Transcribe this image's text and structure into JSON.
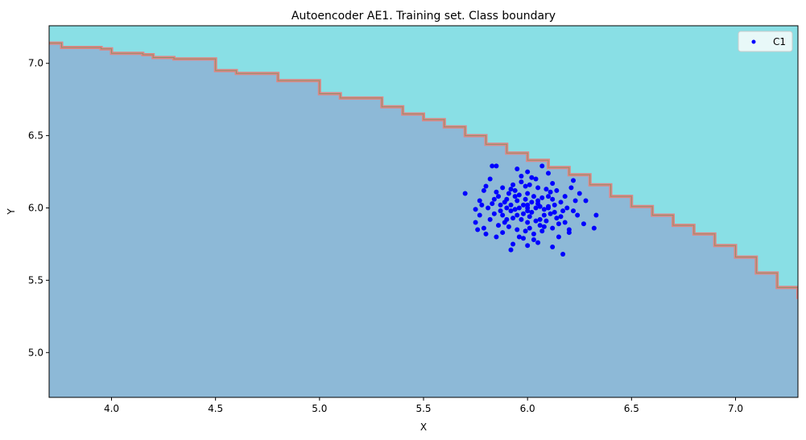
{
  "chart_data": {
    "type": "scatter",
    "title": "Autoencoder AE1. Training set. Class boundary",
    "xlabel": "X",
    "ylabel": "Y",
    "xlim": [
      3.7,
      7.3
    ],
    "ylim": [
      4.69,
      7.26
    ],
    "xticks": [
      "4.0",
      "4.5",
      "5.0",
      "5.5",
      "6.0",
      "6.5",
      "7.0"
    ],
    "yticks": [
      "5.0",
      "5.5",
      "6.0",
      "6.5",
      "7.0"
    ],
    "grid": false,
    "legend": {
      "position": "top-right",
      "entries": [
        "C1"
      ]
    },
    "colors": {
      "region_upper": "#89dfe5",
      "region_lower": "#8db9d7",
      "boundary": "#e08585",
      "boundary_inner": "#5a9a5a",
      "points": "#0000ff"
    },
    "boundary": [
      [
        3.7,
        7.14
      ],
      [
        3.76,
        7.11
      ],
      [
        3.95,
        7.1
      ],
      [
        4.0,
        7.07
      ],
      [
        4.15,
        7.06
      ],
      [
        4.2,
        7.04
      ],
      [
        4.3,
        7.03
      ],
      [
        4.5,
        6.95
      ],
      [
        4.6,
        6.93
      ],
      [
        4.8,
        6.88
      ],
      [
        5.0,
        6.79
      ],
      [
        5.1,
        6.76
      ],
      [
        5.3,
        6.7
      ],
      [
        5.4,
        6.65
      ],
      [
        5.5,
        6.61
      ],
      [
        5.6,
        6.56
      ],
      [
        5.7,
        6.5
      ],
      [
        5.8,
        6.44
      ],
      [
        5.9,
        6.38
      ],
      [
        6.0,
        6.33
      ],
      [
        6.1,
        6.28
      ],
      [
        6.2,
        6.23
      ],
      [
        6.3,
        6.16
      ],
      [
        6.4,
        6.08
      ],
      [
        6.5,
        6.01
      ],
      [
        6.6,
        5.95
      ],
      [
        6.7,
        5.88
      ],
      [
        6.8,
        5.82
      ],
      [
        6.9,
        5.74
      ],
      [
        7.0,
        5.66
      ],
      [
        7.1,
        5.55
      ],
      [
        7.2,
        5.45
      ],
      [
        7.3,
        5.37
      ]
    ],
    "series": [
      {
        "name": "C1",
        "points": [
          [
            5.7,
            6.1
          ],
          [
            6.33,
            5.95
          ],
          [
            6.32,
            5.86
          ],
          [
            5.92,
            5.71
          ],
          [
            6.17,
            5.68
          ],
          [
            5.83,
            6.29
          ],
          [
            5.85,
            6.29
          ],
          [
            6.07,
            6.29
          ],
          [
            6.22,
            6.19
          ],
          [
            5.75,
            5.99
          ],
          [
            5.75,
            5.9
          ],
          [
            5.76,
            5.85
          ],
          [
            5.77,
            6.05
          ],
          [
            5.8,
            5.82
          ],
          [
            5.79,
            6.12
          ],
          [
            5.82,
            6.2
          ],
          [
            6.25,
            6.1
          ],
          [
            6.28,
            6.05
          ],
          [
            6.27,
            5.89
          ],
          [
            6.24,
            5.95
          ],
          [
            5.95,
            6.27
          ],
          [
            6.0,
            6.25
          ],
          [
            6.1,
            6.24
          ],
          [
            5.93,
            5.75
          ],
          [
            6.0,
            5.74
          ],
          [
            6.12,
            5.73
          ],
          [
            6.05,
            5.76
          ],
          [
            6.15,
            5.8
          ],
          [
            6.2,
            5.83
          ],
          [
            5.85,
            5.8
          ],
          [
            6.0,
            6.0
          ],
          [
            5.98,
            6.02
          ],
          [
            6.02,
            5.97
          ],
          [
            5.95,
            6.05
          ],
          [
            6.05,
            6.03
          ],
          [
            5.92,
            5.98
          ],
          [
            6.08,
            5.95
          ],
          [
            5.97,
            5.92
          ],
          [
            6.03,
            6.08
          ],
          [
            5.9,
            6.06
          ],
          [
            6.1,
            6.01
          ],
          [
            5.88,
            5.95
          ],
          [
            6.12,
            6.06
          ],
          [
            5.94,
            6.12
          ],
          [
            6.06,
            5.88
          ],
          [
            5.99,
            6.15
          ],
          [
            6.01,
            5.86
          ],
          [
            5.87,
            6.02
          ],
          [
            6.13,
            5.97
          ],
          [
            5.96,
            6.0
          ],
          [
            6.04,
            6.0
          ],
          [
            5.93,
            5.93
          ],
          [
            6.07,
            6.07
          ],
          [
            5.91,
            6.1
          ],
          [
            6.09,
            5.91
          ],
          [
            5.86,
            6.08
          ],
          [
            6.14,
            5.93
          ],
          [
            5.95,
            5.85
          ],
          [
            6.05,
            6.14
          ],
          [
            5.89,
            5.9
          ],
          [
            6.11,
            6.11
          ],
          [
            6.0,
            6.1
          ],
          [
            6.0,
            5.9
          ],
          [
            5.9,
            6.0
          ],
          [
            6.1,
            6.0
          ],
          [
            5.84,
            5.96
          ],
          [
            6.16,
            6.04
          ],
          [
            5.97,
            6.18
          ],
          [
            6.03,
            5.82
          ],
          [
            5.83,
            6.03
          ],
          [
            6.17,
            5.98
          ],
          [
            5.96,
            5.8
          ],
          [
            6.04,
            6.2
          ],
          [
            5.82,
            5.92
          ],
          [
            6.18,
            6.08
          ],
          [
            5.88,
            6.14
          ],
          [
            6.12,
            5.86
          ],
          [
            5.94,
            6.08
          ],
          [
            6.06,
            5.92
          ],
          [
            5.98,
            5.96
          ],
          [
            6.02,
            6.04
          ],
          [
            5.92,
            6.02
          ],
          [
            6.08,
            5.99
          ],
          [
            5.99,
            6.06
          ],
          [
            6.01,
            5.94
          ],
          [
            5.85,
            6.11
          ],
          [
            6.15,
            5.89
          ],
          [
            5.91,
            5.87
          ],
          [
            6.09,
            6.13
          ],
          [
            5.97,
            6.22
          ],
          [
            6.03,
            5.78
          ],
          [
            5.81,
            6.0
          ],
          [
            6.19,
            6.0
          ],
          [
            5.86,
            5.88
          ],
          [
            6.14,
            6.12
          ],
          [
            5.93,
            6.16
          ],
          [
            6.07,
            5.84
          ],
          [
            5.95,
            5.95
          ],
          [
            6.05,
            6.05
          ],
          [
            5.89,
            6.04
          ],
          [
            6.11,
            5.96
          ],
          [
            6.0,
            6.02
          ],
          [
            6.0,
            5.98
          ],
          [
            5.94,
            5.99
          ],
          [
            6.06,
            6.01
          ],
          [
            5.96,
            6.09
          ],
          [
            6.04,
            5.91
          ],
          [
            5.87,
            5.98
          ],
          [
            6.13,
            6.02
          ],
          [
            5.99,
            5.84
          ],
          [
            6.01,
            6.16
          ],
          [
            5.9,
            5.92
          ],
          [
            6.1,
            6.08
          ],
          [
            5.92,
            6.13
          ],
          [
            6.08,
            5.87
          ],
          [
            5.84,
            6.06
          ],
          [
            6.16,
            5.94
          ],
          [
            5.78,
            6.02
          ],
          [
            6.22,
            5.98
          ],
          [
            5.8,
            6.15
          ],
          [
            6.2,
            5.85
          ],
          [
            5.79,
            5.86
          ],
          [
            6.21,
            6.14
          ],
          [
            5.88,
            5.83
          ],
          [
            6.12,
            6.17
          ],
          [
            5.98,
            5.79
          ],
          [
            6.02,
            6.21
          ],
          [
            6.23,
            6.05
          ],
          [
            5.77,
            5.95
          ],
          [
            6.18,
            5.9
          ]
        ]
      }
    ]
  }
}
